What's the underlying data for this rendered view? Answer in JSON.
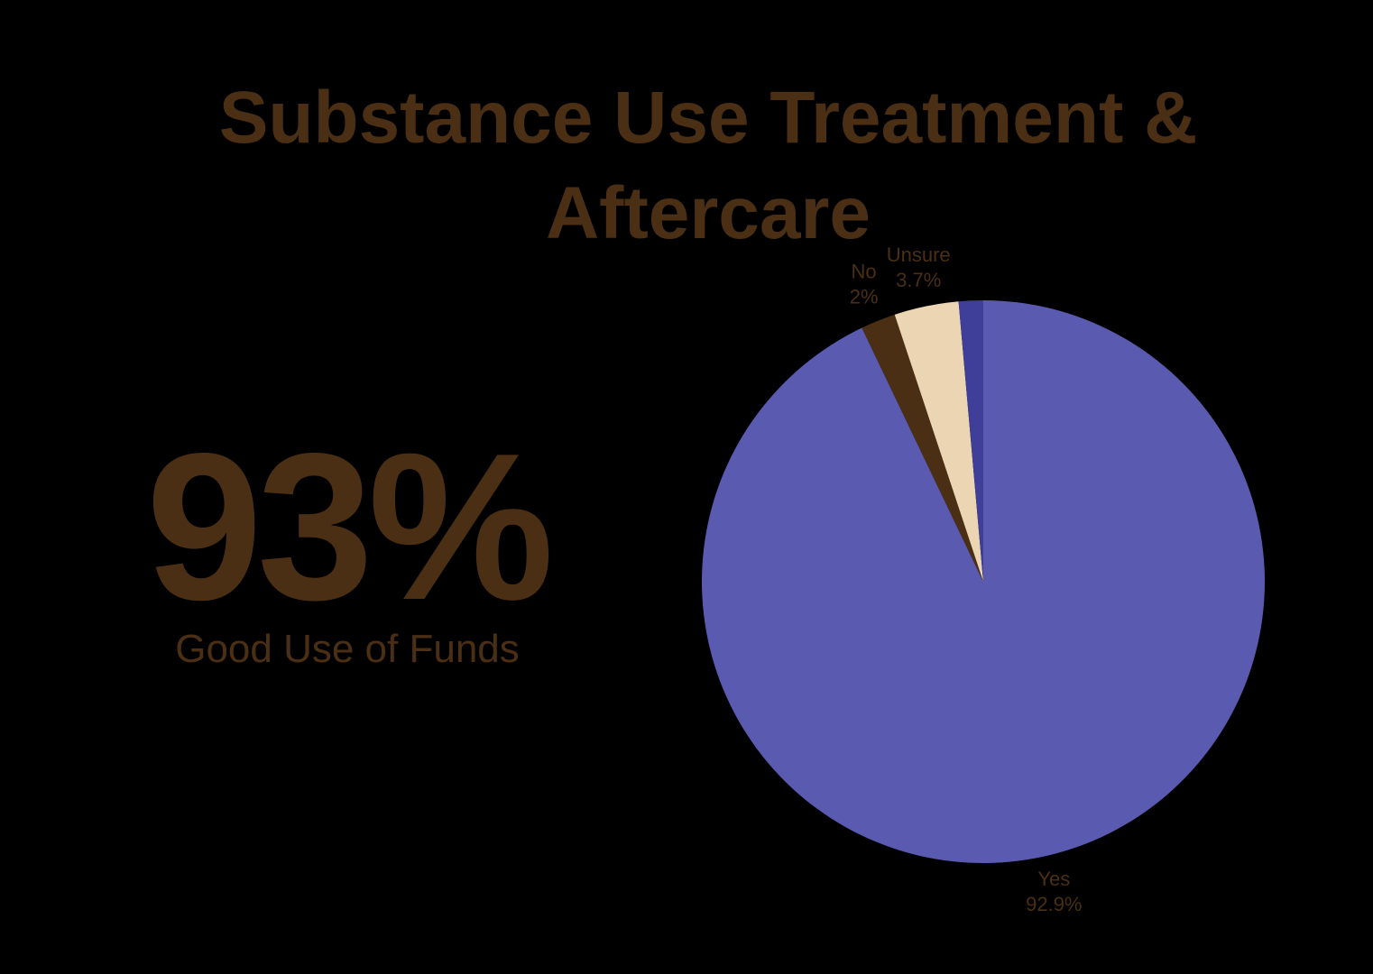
{
  "chart_data": {
    "type": "pie",
    "title": "Substance Use Treatment & Aftercare",
    "headline": "93%",
    "headline_caption": "Good Use of Funds",
    "categories": [
      "Yes",
      "No",
      "Unsure",
      null
    ],
    "values": [
      92.9,
      2,
      3.7,
      1.4
    ],
    "value_labels": [
      "92.9%",
      "2%",
      "3.7%",
      null
    ],
    "colors": [
      "#5a5ab0",
      "#4a2f14",
      "#ecd5b3",
      "#3f3f9a"
    ],
    "text_color": "#4a2f14"
  }
}
